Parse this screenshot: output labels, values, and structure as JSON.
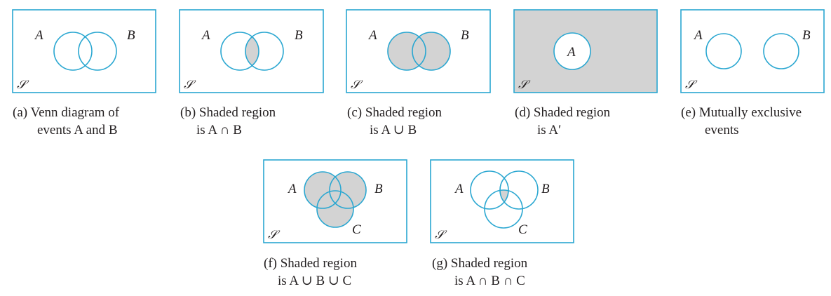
{
  "sample_space_symbol": "𝒮",
  "panels": {
    "a": {
      "set_labels": [
        "A",
        "B"
      ],
      "caption": {
        "line1": "(a) Venn diagram of",
        "line2": "events A and B"
      }
    },
    "b": {
      "set_labels": [
        "A",
        "B"
      ],
      "caption": {
        "line1": "(b) Shaded region",
        "line2": "is A ∩ B"
      }
    },
    "c": {
      "set_labels": [
        "A",
        "B"
      ],
      "caption": {
        "line1": "(c) Shaded region",
        "line2": "is A ∪ B"
      }
    },
    "d": {
      "set_labels": [
        "A"
      ],
      "caption": {
        "line1": "(d) Shaded region",
        "line2": "is A′"
      }
    },
    "e": {
      "set_labels": [
        "A",
        "B"
      ],
      "caption": {
        "line1": "(e) Mutually exclusive",
        "line2": "events"
      }
    },
    "f": {
      "set_labels": [
        "A",
        "B",
        "C"
      ],
      "caption": {
        "line1": "(f) Shaded region",
        "line2": "is A ∪ B ∪ C"
      }
    },
    "g": {
      "set_labels": [
        "A",
        "B",
        "C"
      ],
      "caption": {
        "line1": "(g) Shaded region",
        "line2": "is A ∩ B ∩ C"
      }
    }
  },
  "colors": {
    "outline": "#2aa7d1",
    "shade": "#d3d3d3",
    "text": "#231f20"
  }
}
